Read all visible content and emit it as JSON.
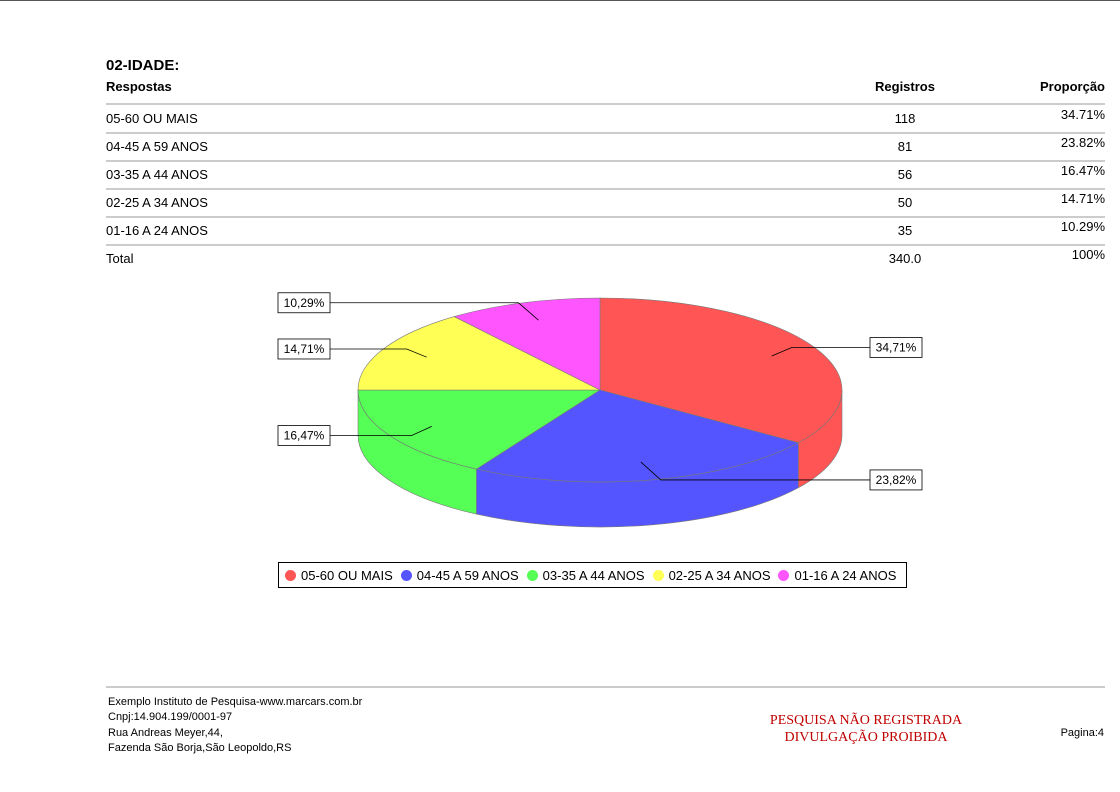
{
  "header": {
    "title": "02-IDADE:"
  },
  "table": {
    "columns": [
      "Respostas",
      "Registros",
      "Proporção"
    ],
    "rows": [
      [
        "05-60 OU MAIS",
        "118",
        "34.71%"
      ],
      [
        "04-45 A 59 ANOS",
        "81",
        "23.82%"
      ],
      [
        "03-35 A 44 ANOS",
        "56",
        "16.47%"
      ],
      [
        "02-25 A 34 ANOS",
        "50",
        "14.71%"
      ],
      [
        "01-16 A 24 ANOS",
        "35",
        "10.29%"
      ]
    ],
    "total": [
      "Total",
      "340.0",
      "100%"
    ]
  },
  "chart_data": {
    "type": "pie",
    "categories": [
      "05-60 OU MAIS",
      "04-45 A 59 ANOS",
      "03-35 A 44 ANOS",
      "02-25 A 34 ANOS",
      "01-16 A 24 ANOS"
    ],
    "values": [
      34.71,
      23.82,
      16.47,
      14.71,
      10.29
    ],
    "value_labels": [
      "34,71%",
      "23,82%",
      "16,47%",
      "14,71%",
      "10,29%"
    ],
    "colors": [
      "#ff5555",
      "#5555ff",
      "#55ff55",
      "#ffff55",
      "#ff55ff"
    ]
  },
  "footer": {
    "lines": [
      "Exemplo Instituto de Pesquisa-www.marcars.com.br",
      "Cnpj:14.904.199/0001-97",
      "Rua Andreas Meyer,44,",
      "Fazenda São Borja,São Leopoldo,RS"
    ],
    "notice": [
      "PESQUISA NÃO REGISTRADA",
      "DIVULGAÇÃO PROIBIDA"
    ],
    "page": "Pagina:4"
  }
}
